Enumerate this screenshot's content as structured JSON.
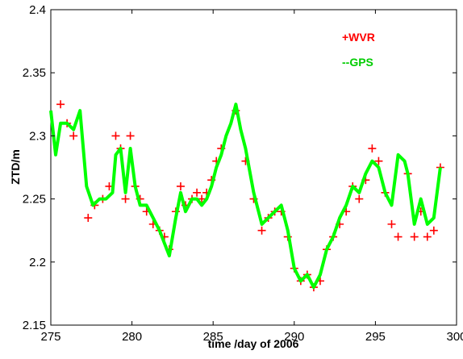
{
  "chart_data": {
    "type": "scatter",
    "title": "",
    "xlabel": "time /day of 2006",
    "ylabel": "ZTD/m",
    "xlim": [
      275,
      300
    ],
    "ylim": [
      2.15,
      2.4
    ],
    "xticks": [
      "275",
      "280",
      "285",
      "290",
      "295",
      "300"
    ],
    "yticks": [
      "2.4",
      "2.35",
      "2.3",
      "2.25",
      "2.2",
      "2.15"
    ],
    "grid": false,
    "legend_position": "top-right",
    "series": [
      {
        "name": "+WVR",
        "label": "+WVR",
        "marker": "plus",
        "color": "#ff0000",
        "x": [
          275.6,
          276.0,
          276.4,
          277.3,
          277.7,
          278.2,
          278.6,
          279.0,
          279.3,
          279.6,
          279.9,
          280.2,
          280.5,
          280.9,
          281.3,
          281.7,
          282.0,
          282.3,
          282.7,
          283.0,
          283.3,
          283.7,
          284.0,
          284.3,
          284.6,
          284.9,
          285.2,
          285.5,
          286.4,
          287.0,
          287.5,
          288.0,
          288.4,
          288.8,
          289.2,
          289.6,
          290.0,
          290.4,
          290.8,
          291.2,
          291.6,
          292.0,
          292.4,
          292.8,
          293.2,
          293.6,
          294.0,
          294.4,
          294.8,
          295.2,
          295.6,
          296.0,
          296.4,
          297.0,
          297.4,
          297.8,
          298.2,
          298.6,
          299.0
        ],
        "y": [
          2.325,
          2.31,
          2.3,
          2.235,
          2.245,
          2.25,
          2.26,
          2.3,
          2.29,
          2.25,
          2.3,
          2.26,
          2.25,
          2.24,
          2.23,
          2.225,
          2.22,
          2.21,
          2.24,
          2.26,
          2.245,
          2.25,
          2.255,
          2.25,
          2.255,
          2.265,
          2.28,
          2.29,
          2.32,
          2.28,
          2.25,
          2.225,
          2.235,
          2.24,
          2.24,
          2.22,
          2.195,
          2.185,
          2.19,
          2.18,
          2.185,
          2.21,
          2.22,
          2.23,
          2.24,
          2.26,
          2.25,
          2.265,
          2.29,
          2.28,
          2.255,
          2.23,
          2.22,
          2.27,
          2.22,
          2.24,
          2.22,
          2.225,
          2.275
        ]
      },
      {
        "name": "--GPS",
        "label": "--GPS",
        "marker": "line",
        "color": "#00ff00",
        "x": [
          275.0,
          275.3,
          275.6,
          276.0,
          276.4,
          276.8,
          277.2,
          277.6,
          278.0,
          278.4,
          278.8,
          279.0,
          279.3,
          279.6,
          279.9,
          280.2,
          280.5,
          280.9,
          281.3,
          281.7,
          282.0,
          282.3,
          282.7,
          283.0,
          283.3,
          283.7,
          284.0,
          284.3,
          284.6,
          284.9,
          285.2,
          285.5,
          285.8,
          286.1,
          286.4,
          286.7,
          287.0,
          287.5,
          288.0,
          288.4,
          288.8,
          289.2,
          289.6,
          290.0,
          290.4,
          290.8,
          291.2,
          291.6,
          292.0,
          292.4,
          292.8,
          293.2,
          293.6,
          294.0,
          294.4,
          294.8,
          295.2,
          295.6,
          296.0,
          296.4,
          296.8,
          297.0,
          297.4,
          297.8,
          298.2,
          298.6,
          299.0
        ],
        "y": [
          2.32,
          2.285,
          2.31,
          2.31,
          2.305,
          2.32,
          2.26,
          2.245,
          2.25,
          2.25,
          2.255,
          2.285,
          2.29,
          2.255,
          2.29,
          2.26,
          2.245,
          2.245,
          2.235,
          2.225,
          2.215,
          2.205,
          2.235,
          2.255,
          2.24,
          2.25,
          2.25,
          2.245,
          2.25,
          2.26,
          2.275,
          2.285,
          2.3,
          2.31,
          2.325,
          2.305,
          2.29,
          2.255,
          2.23,
          2.235,
          2.24,
          2.245,
          2.225,
          2.195,
          2.185,
          2.19,
          2.18,
          2.19,
          2.21,
          2.22,
          2.235,
          2.245,
          2.26,
          2.255,
          2.27,
          2.28,
          2.275,
          2.255,
          2.245,
          2.285,
          2.28,
          2.27,
          2.23,
          2.25,
          2.23,
          2.235,
          2.275
        ]
      }
    ]
  }
}
